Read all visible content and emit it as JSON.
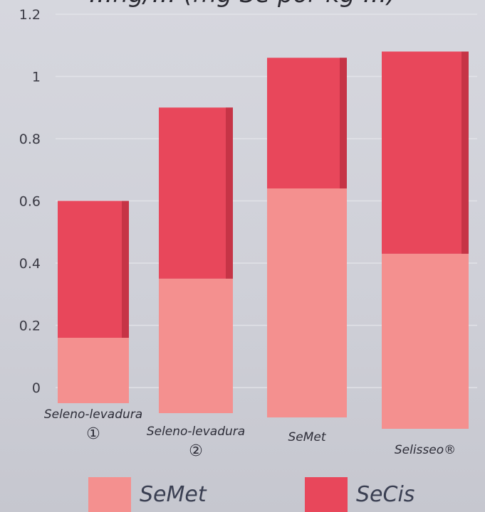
{
  "chart_data": {
    "type": "bar",
    "stacked": true,
    "title": "…ng/… (mg Se por kg …)",
    "categories": [
      "Seleno-levadura ①",
      "Seleno-levadura ②",
      "SeMet",
      "Selisseo®"
    ],
    "series": [
      {
        "name": "SeMet",
        "values": [
          0.16,
          0.35,
          0.64,
          0.43
        ],
        "color": "#f4908f"
      },
      {
        "name": "SeCis",
        "values": [
          0.44,
          0.55,
          0.42,
          0.65
        ],
        "color": "#e8475b"
      }
    ],
    "ylim": [
      0,
      1.2
    ],
    "yticks": [
      "0",
      "0.2",
      "0.4",
      "0.6",
      "0.8",
      "1",
      "1.2"
    ],
    "grid": true,
    "legend_position": "bottom"
  },
  "category_labels": [
    {
      "line1": "Seleno-levadura",
      "line2": "①"
    },
    {
      "line1": "Seleno-levadura",
      "line2": "②"
    },
    {
      "line1": "SeMet",
      "line2": ""
    },
    {
      "line1": "Selisseo®",
      "line2": ""
    }
  ],
  "legend": [
    {
      "label": "SeMet",
      "color": "#f4908f"
    },
    {
      "label": "SeCis",
      "color": "#e8475b"
    }
  ]
}
